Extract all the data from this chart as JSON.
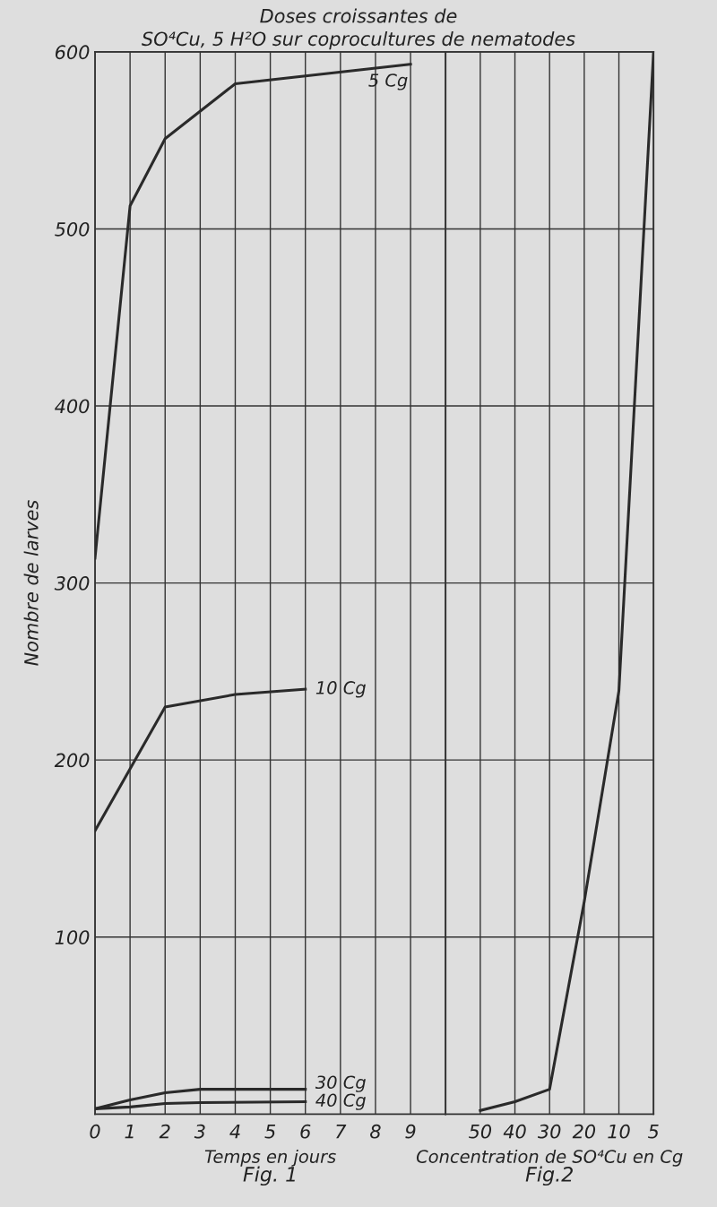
{
  "chart_data": [
    {
      "type": "line",
      "title": "Doses croissantes de",
      "subtitle": "SO⁴Cu, 5 H²O sur coprocultures de nematodes",
      "xlabel": "Temps en jours",
      "ylabel": "Nombre de larves",
      "annotations": [
        "Fig. 1"
      ],
      "series": [
        {
          "name": "5 Cg",
          "color": "#2a2a2a",
          "x": [
            0,
            1,
            2,
            4,
            9
          ],
          "values": [
            314,
            513,
            551,
            582,
            593
          ]
        },
        {
          "name": "10 Cg",
          "color": "#2a2a2a",
          "x": [
            0,
            2,
            4,
            6
          ],
          "values": [
            160,
            230,
            237,
            240
          ]
        },
        {
          "name": "30 Cg",
          "color": "#2a2a2a",
          "x": [
            0,
            1,
            2,
            3,
            6
          ],
          "values": [
            3,
            8,
            12,
            14,
            14
          ]
        },
        {
          "name": "40 Cg",
          "color": "#2a2a2a",
          "x": [
            0,
            1,
            2,
            3,
            6
          ],
          "values": [
            3,
            4,
            6,
            6.5,
            7
          ]
        }
      ],
      "xlim": [
        0,
        10
      ],
      "xticks": [
        0,
        1,
        2,
        3,
        4,
        5,
        6,
        7,
        8,
        9
      ],
      "ylim": [
        0,
        600
      ],
      "yticks": [
        100,
        200,
        300,
        400,
        500,
        600
      ],
      "grid": true,
      "marker": "none",
      "line_style": "solid"
    },
    {
      "type": "line",
      "xlabel": "Concentration de SO⁴Cu en Cg",
      "annotations": [
        "Fig.2"
      ],
      "categories": [
        "50",
        "40",
        "30",
        "20",
        "10",
        "5"
      ],
      "series": [
        {
          "color": "#2a2a2a",
          "values": [
            2,
            7,
            14,
            120,
            239,
            600
          ]
        }
      ],
      "ylim": [
        0,
        600
      ],
      "yticks": [
        100,
        200,
        300,
        400,
        500,
        600
      ],
      "grid": true,
      "tick_labels": "x",
      "marker": "none",
      "line_style": "solid"
    }
  ]
}
